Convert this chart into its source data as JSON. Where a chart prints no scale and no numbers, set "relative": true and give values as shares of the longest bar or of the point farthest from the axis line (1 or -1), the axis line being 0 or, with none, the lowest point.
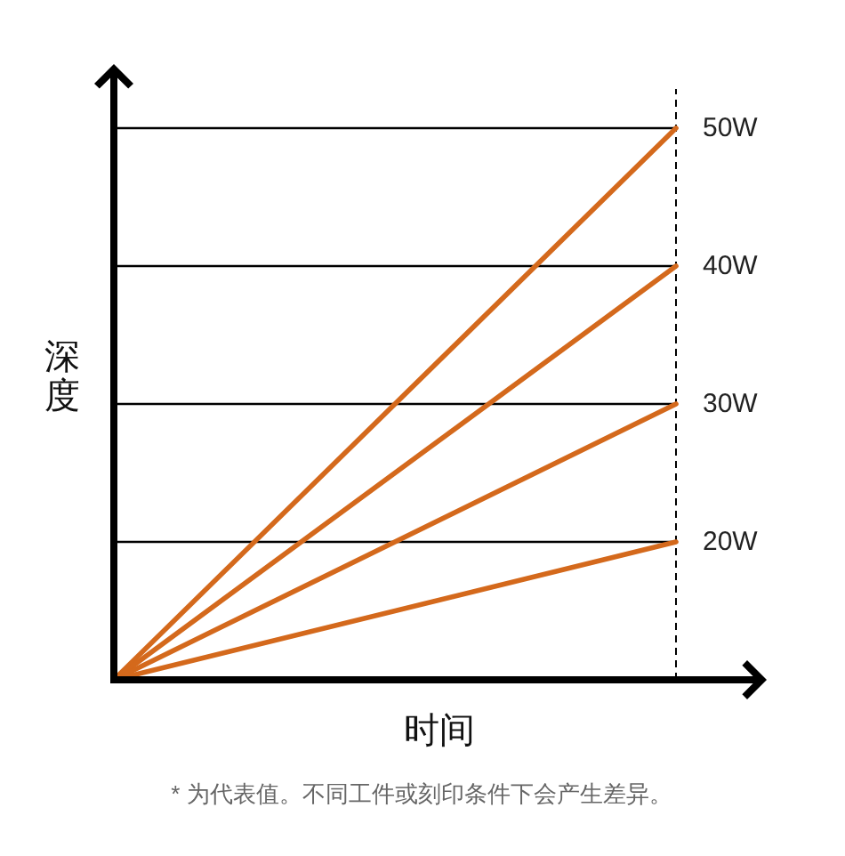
{
  "chart_data": {
    "type": "line",
    "relative": true,
    "xlabel": "时间",
    "ylabel": "深度",
    "categories": [
      null,
      null
    ],
    "series": [
      {
        "name": "50W",
        "color": "#d4691c",
        "values": [
          0,
          1
        ]
      },
      {
        "name": "40W",
        "color": "#d4691c",
        "values": [
          0,
          0.75
        ]
      },
      {
        "name": "30W",
        "color": "#d4691c",
        "values": [
          0,
          0.5
        ]
      },
      {
        "name": "20W",
        "color": "#d4691c",
        "values": [
          0,
          0.25
        ]
      }
    ],
    "ref_lines": [
      {
        "axis": "y",
        "value": 1,
        "color": "#000000"
      },
      {
        "axis": "y",
        "value": 0.75,
        "color": "#000000"
      },
      {
        "axis": "y",
        "value": 0.5,
        "color": "#000000"
      },
      {
        "axis": "y",
        "value": 0.25,
        "color": "#000000"
      }
    ],
    "line_style": "solid",
    "annotations": [
      "* 为代表值。不同工件或刻印条件下会产生差异。"
    ]
  }
}
